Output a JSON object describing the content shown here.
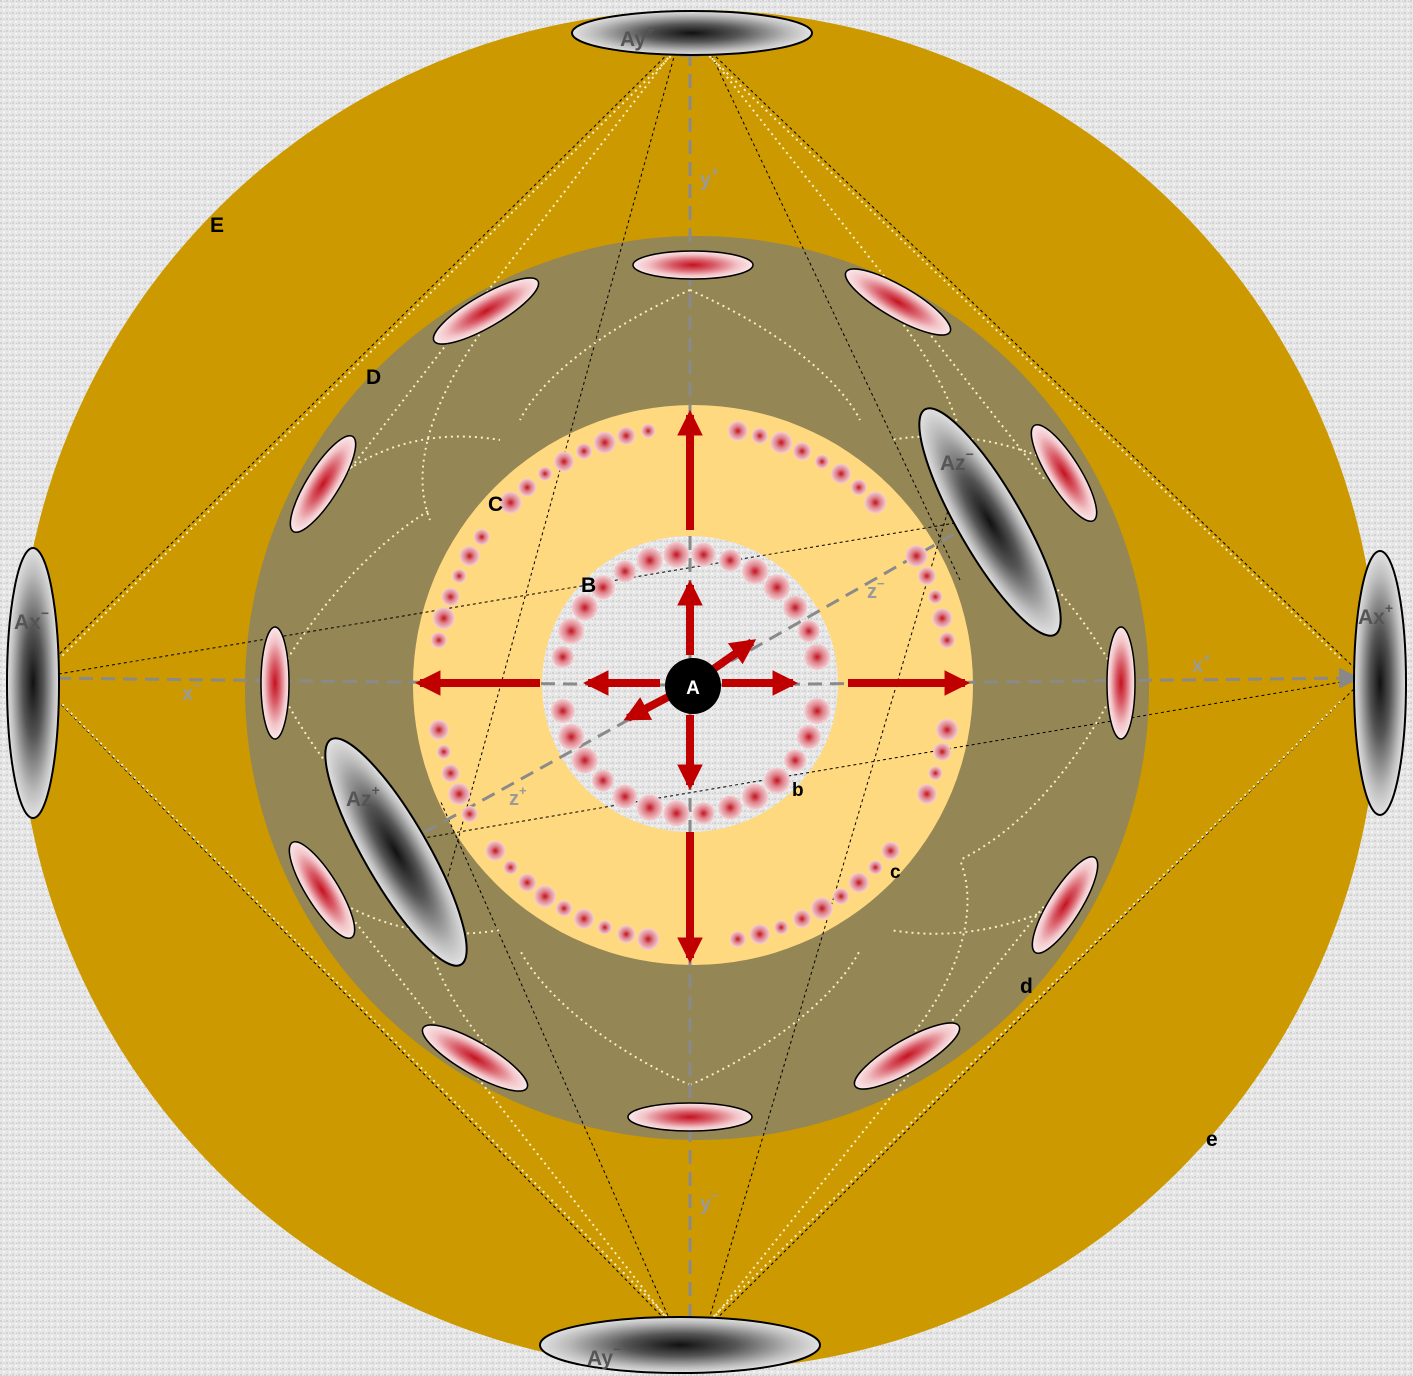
{
  "colors": {
    "background": "#e4e4e4",
    "outer_ring": "#cc9900",
    "middle_ring": "#948655",
    "inner_disc": "#ffd980",
    "core_disc": "#e6e6e6",
    "center": "#000000",
    "arrow_red": "#c00000",
    "pink_particle": "#e8a0a8",
    "gray_dash": "#888888"
  },
  "labels": {
    "center": "A",
    "ring_B": "B",
    "ring_b": "b",
    "ring_C": "C",
    "ring_c": "c",
    "ring_D": "D",
    "ring_d": "d",
    "ring_E": "E",
    "ring_e": "e",
    "axis_x_plus": "x",
    "axis_x_plus_sign": "+",
    "axis_x_minus": "x",
    "axis_x_minus_sign": "−",
    "axis_y_plus": "y",
    "axis_y_plus_sign": "+",
    "axis_y_minus": "y",
    "axis_y_minus_sign": "−",
    "axis_z_plus": "z",
    "axis_z_plus_sign": "+",
    "axis_z_minus": "z",
    "axis_z_minus_sign": "−",
    "pole_ay_plus": "Ay",
    "pole_ay_plus_sign": "+",
    "pole_ay_minus": "Ay",
    "pole_ay_minus_sign": "−",
    "pole_ax_plus": "Ax",
    "pole_ax_plus_sign": "+",
    "pole_ax_minus": "Ax",
    "pole_ax_minus_sign": "−",
    "pole_az_plus": "Az",
    "pole_az_plus_sign": "+",
    "pole_az_minus": "Az",
    "pole_az_minus_sign": "−"
  }
}
